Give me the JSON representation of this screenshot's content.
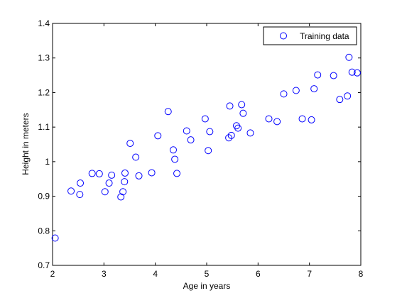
{
  "chart_data": {
    "type": "scatter",
    "xlabel": "Age in years",
    "ylabel": "Height in meters",
    "xlim": [
      2,
      8
    ],
    "ylim": [
      0.7,
      1.4
    ],
    "xticks": [
      "2",
      "3",
      "4",
      "5",
      "6",
      "7",
      "8"
    ],
    "yticks": [
      "0.7",
      "0.8",
      "0.9",
      "1",
      "1.1",
      "1.2",
      "1.3",
      "1.4"
    ],
    "grid": false,
    "legend_position": "top-right",
    "series": [
      {
        "name": "Training data",
        "marker": "circle-open",
        "color": "#0000ff",
        "points": [
          [
            2.05,
            0.779
          ],
          [
            2.36,
            0.915
          ],
          [
            2.53,
            0.905
          ],
          [
            2.54,
            0.938
          ],
          [
            2.77,
            0.966
          ],
          [
            2.91,
            0.965
          ],
          [
            3.02,
            0.913
          ],
          [
            3.1,
            0.938
          ],
          [
            3.15,
            0.961
          ],
          [
            3.33,
            0.898
          ],
          [
            3.37,
            0.913
          ],
          [
            3.4,
            0.942
          ],
          [
            3.41,
            0.967
          ],
          [
            3.51,
            1.053
          ],
          [
            3.62,
            1.013
          ],
          [
            3.68,
            0.959
          ],
          [
            3.93,
            0.968
          ],
          [
            4.05,
            1.075
          ],
          [
            4.25,
            1.145
          ],
          [
            4.35,
            1.034
          ],
          [
            4.38,
            1.007
          ],
          [
            4.42,
            0.966
          ],
          [
            4.61,
            1.089
          ],
          [
            4.69,
            1.063
          ],
          [
            4.97,
            1.124
          ],
          [
            5.03,
            1.032
          ],
          [
            5.06,
            1.087
          ],
          [
            5.43,
            1.069
          ],
          [
            5.45,
            1.161
          ],
          [
            5.48,
            1.076
          ],
          [
            5.58,
            1.104
          ],
          [
            5.61,
            1.097
          ],
          [
            5.68,
            1.165
          ],
          [
            5.71,
            1.14
          ],
          [
            5.85,
            1.083
          ],
          [
            6.21,
            1.124
          ],
          [
            6.37,
            1.116
          ],
          [
            6.5,
            1.196
          ],
          [
            6.74,
            1.206
          ],
          [
            6.86,
            1.124
          ],
          [
            7.04,
            1.121
          ],
          [
            7.09,
            1.211
          ],
          [
            7.16,
            1.251
          ],
          [
            7.47,
            1.249
          ],
          [
            7.59,
            1.18
          ],
          [
            7.74,
            1.19
          ],
          [
            7.77,
            1.302
          ],
          [
            7.83,
            1.259
          ],
          [
            7.93,
            1.257
          ]
        ]
      }
    ]
  }
}
